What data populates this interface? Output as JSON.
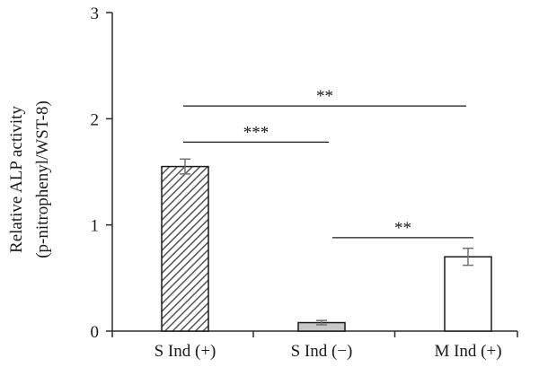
{
  "chart_data": {
    "type": "bar",
    "title": "",
    "ylabel": [
      "Relative ALP activity",
      "(p-nitrophenyl/WST-8)"
    ],
    "xlabel": "",
    "categories": [
      "S Ind (+)",
      "S Ind (−)",
      "M Ind (+)"
    ],
    "values": [
      1.55,
      0.08,
      0.7
    ],
    "errors": [
      0.07,
      0.02,
      0.08
    ],
    "ylim": [
      0,
      3
    ],
    "yticks": [
      0,
      1,
      2,
      3
    ],
    "bar_styles": [
      "hatched",
      "gray",
      "white"
    ],
    "significance": [
      {
        "from": 0,
        "to": 2,
        "label": "**",
        "y": 2.12
      },
      {
        "from": 0,
        "to": 1,
        "label": "***",
        "y": 1.78
      },
      {
        "from": 1,
        "to": 2,
        "label": "**",
        "y": 0.88
      }
    ],
    "grid": false,
    "legend": "none"
  },
  "colors": {
    "axis": "#2a2a2a",
    "bar_outline": "#1a1a1a",
    "hatch_bg": "#ffffff",
    "hatch_line": "#555555",
    "gray_fill": "#c8c8c8",
    "error_bar": "#707070"
  }
}
